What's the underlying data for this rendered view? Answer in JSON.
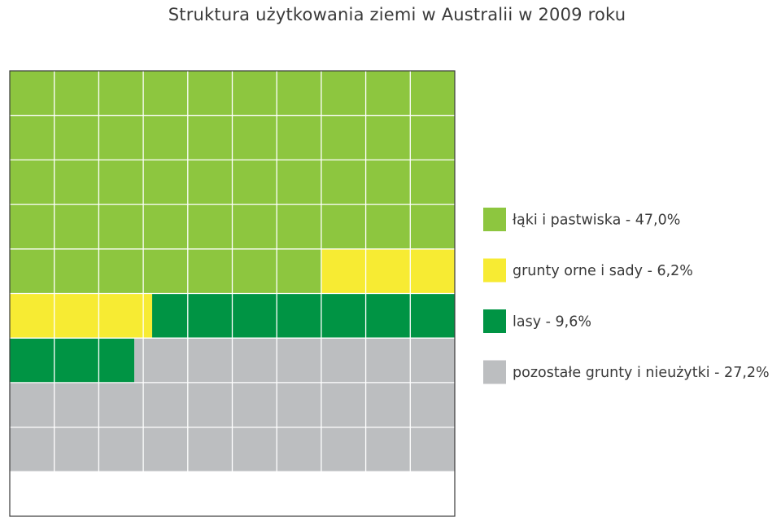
{
  "title": "Struktura użytkowania ziemi w Australii w 2009 roku",
  "chart_data": {
    "type": "waffle",
    "title": "Struktura użytkowania ziemi w Australii w 2009 roku",
    "grid": {
      "rows": 10,
      "cols": 10
    },
    "series": [
      {
        "name": "łąki i pastwiska",
        "value": 47.0,
        "color": "#8dc63f",
        "label": "łąki i pastwiska - 47,0%"
      },
      {
        "name": "grunty orne i sady",
        "value": 6.2,
        "color": "#f7eb33",
        "label": "grunty orne i sady - 6,2%"
      },
      {
        "name": "lasy",
        "value": 9.6,
        "color": "#009444",
        "label": "lasy - 9,6%"
      },
      {
        "name": "pozostałe grunty i nieużytki",
        "value": 27.2,
        "color": "#bcbec0",
        "label": "pozostałe grunty i nieużytki - 27,2%"
      }
    ],
    "legend_position": "right",
    "grid_line_color": "#ffffff",
    "border_color": "#3a3a3a"
  }
}
